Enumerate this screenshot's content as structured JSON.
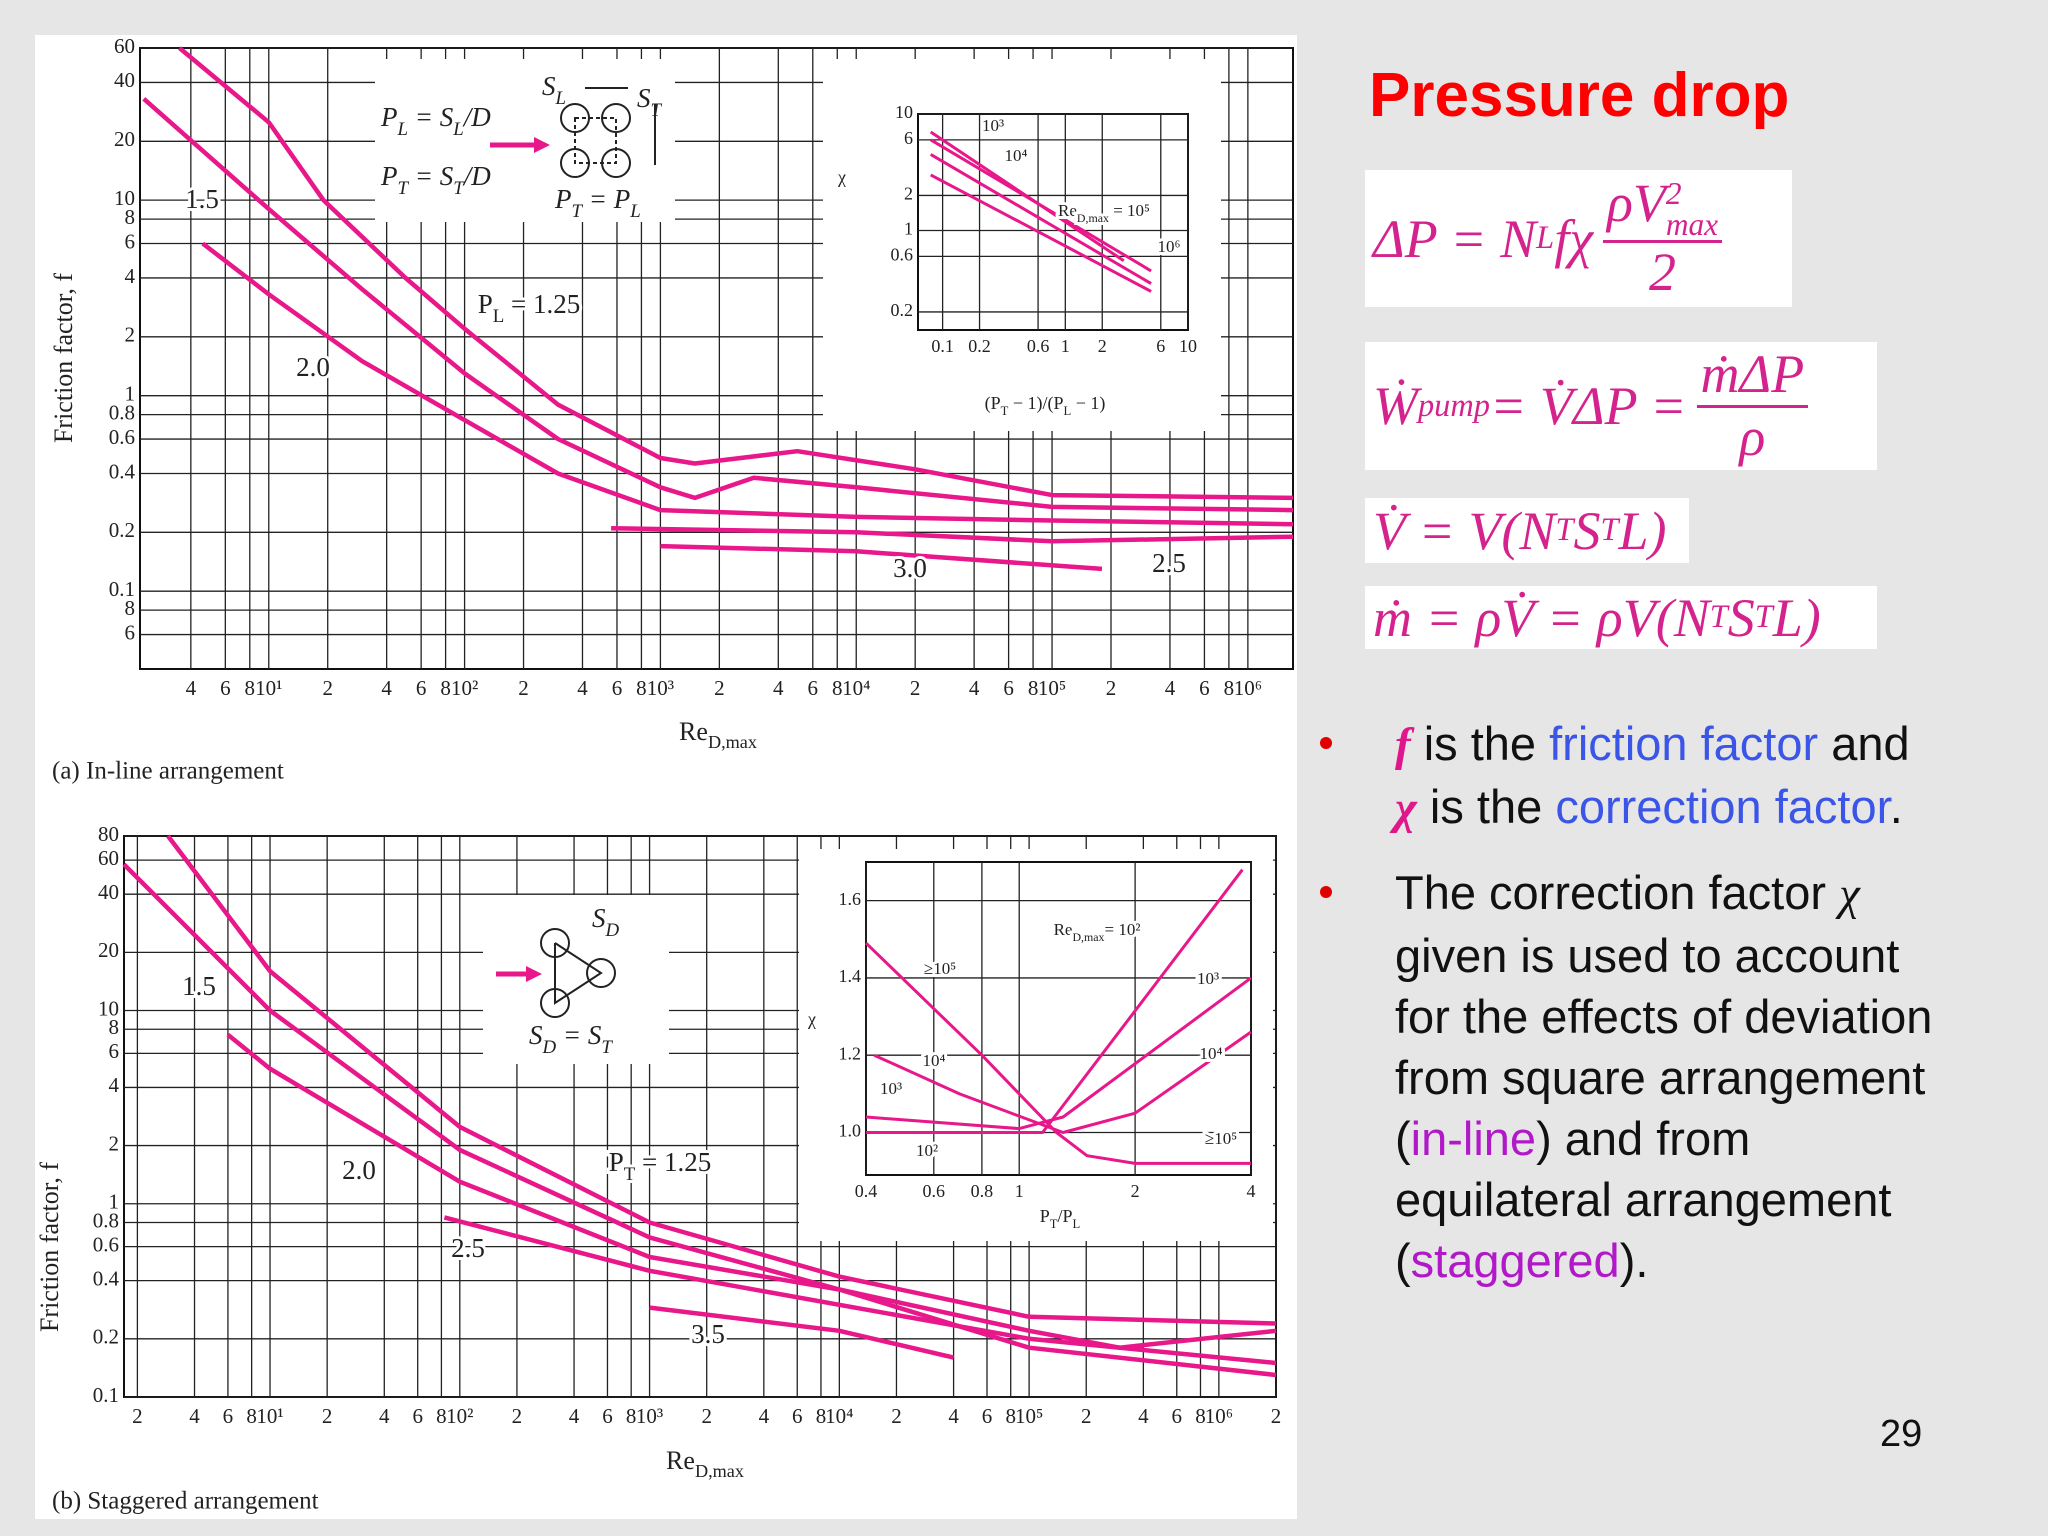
{
  "slide": {
    "title": "Pressure drop",
    "equations": [
      [
        "ΔP = N",
        "L",
        " fχ ",
        "ρV",
        "2",
        "max",
        "2"
      ],
      [
        "Ẇ",
        "pump",
        " = V̇ΔP = ",
        "ṁΔP",
        "ρ"
      ],
      [
        "V̇ = V(N",
        "T",
        "S",
        "T",
        "L)"
      ],
      [
        "ṁ = ρV̇ = ρV(N",
        "T",
        "S",
        "T",
        "L)"
      ]
    ],
    "bullets": [
      {
        "lines": [
          [
            "f",
            " is the ",
            "friction factor",
            " and"
          ],
          [
            "χ",
            " is the ",
            "correction factor",
            "."
          ]
        ]
      },
      {
        "lines": [
          [
            "The correction factor ",
            "χ"
          ],
          [
            "given is used to account"
          ],
          [
            "for the effects of deviation"
          ],
          [
            "from square arrangement"
          ],
          [
            "(",
            "in-line",
            ") and from"
          ],
          [
            "equilateral arrangement"
          ],
          [
            "(",
            "staggered",
            ")."
          ]
        ]
      }
    ],
    "page_number": "29"
  },
  "diagrams": [
    {
      "labels": [
        [
          "P",
          "L",
          " = S",
          "L",
          "/D"
        ],
        [
          "P",
          "T",
          " = S",
          "T",
          "/D"
        ],
        [
          "S",
          "L"
        ],
        [
          "S",
          "T"
        ],
        [
          "P",
          "T",
          " = P",
          "L"
        ]
      ]
    },
    {
      "labels": [
        [
          "S",
          "D"
        ],
        [
          "S",
          "D",
          " = S",
          "T"
        ]
      ]
    }
  ],
  "chart_data": [
    {
      "type": "line",
      "caption": "(a) In-line arrangement",
      "x_label": [
        "Re",
        "D,max"
      ],
      "y_label": "Friction factor, f",
      "log_x": true,
      "log_y": true,
      "grid": true,
      "xlim": [
        2.2,
        1700000
      ],
      "ylim": [
        0.04,
        60
      ],
      "xticks": [
        4,
        6,
        8,
        {
          "value": 10,
          "label": "10¹"
        },
        {
          "value": 20,
          "label": "2"
        },
        {
          "value": 40,
          "label": "4"
        },
        {
          "value": 60,
          "label": "6"
        },
        {
          "value": 80,
          "label": "8"
        },
        {
          "value": 100,
          "label": "10²"
        },
        {
          "value": 200,
          "label": "2"
        },
        {
          "value": 400,
          "label": "4"
        },
        {
          "value": 600,
          "label": "6"
        },
        {
          "value": 800,
          "label": "8"
        },
        {
          "value": 1000,
          "label": "10³"
        },
        {
          "value": 2000,
          "label": "2"
        },
        {
          "value": 4000,
          "label": "4"
        },
        {
          "value": 6000,
          "label": "6"
        },
        {
          "value": 8000,
          "label": "8"
        },
        {
          "value": 10000,
          "label": "10⁴"
        },
        {
          "value": 20000,
          "label": "2"
        },
        {
          "value": 40000,
          "label": "4"
        },
        {
          "value": 60000,
          "label": "6"
        },
        {
          "value": 80000,
          "label": "8"
        },
        {
          "value": 100000,
          "label": "10⁵"
        },
        {
          "value": 200000,
          "label": "2"
        },
        {
          "value": 400000,
          "label": "4"
        },
        {
          "value": 600000,
          "label": "6"
        },
        {
          "value": 800000,
          "label": "8"
        },
        {
          "value": 1000000,
          "label": "10⁶"
        }
      ],
      "yticks": [
        60,
        40,
        20,
        10,
        8,
        6,
        4,
        2,
        1,
        0.8,
        0.6,
        0.4,
        0.2,
        0.1,
        {
          "value": 0.08,
          "label": "8"
        },
        {
          "value": 0.06,
          "label": "6"
        }
      ],
      "color": "#e8178a",
      "series": [
        {
          "labels": [
            [
              "1.5"
            ]
          ],
          "x": [
            3.5,
            10,
            19,
            50,
            100,
            300,
            1000,
            1500,
            5000,
            20000,
            100000,
            1700000
          ],
          "values": [
            60,
            25,
            10,
            4,
            2.2,
            0.9,
            0.48,
            0.45,
            0.52,
            0.42,
            0.31,
            0.3
          ]
        },
        {
          "labels": [
            [
              "P",
              "L",
              " = 1.25"
            ]
          ],
          "x": [
            2.3,
            10,
            30,
            100,
            300,
            1000,
            1500,
            3000,
            10000,
            100000,
            1700000
          ],
          "values": [
            33,
            9,
            3.5,
            1.3,
            0.6,
            0.34,
            0.3,
            0.38,
            0.34,
            0.27,
            0.26
          ]
        },
        {
          "labels": [
            [
              "2.0"
            ]
          ],
          "x": [
            4.6,
            10,
            30,
            100,
            300,
            1000,
            10000,
            100000,
            1700000
          ],
          "values": [
            6,
            3.3,
            1.5,
            0.75,
            0.4,
            0.26,
            0.24,
            0.23,
            0.22
          ]
        },
        {
          "labels": [
            [
              "2.5"
            ]
          ],
          "x": [
            560,
            10000,
            100000,
            1700000
          ],
          "values": [
            0.21,
            0.2,
            0.18,
            0.19
          ]
        },
        {
          "labels": [
            [
              "3.0"
            ]
          ],
          "x": [
            1000,
            10000,
            180000
          ],
          "values": [
            0.17,
            0.16,
            0.13
          ]
        }
      ]
    },
    {
      "type": "line",
      "caption": "(b) Staggered arrangement",
      "x_label": [
        "Re",
        "D,max"
      ],
      "y_label": "Friction factor, f",
      "log_x": true,
      "log_y": true,
      "grid": true,
      "xlim": [
        1.7,
        2000000
      ],
      "ylim": [
        0.1,
        80
      ],
      "xticks": [
        {
          "value": 2,
          "label": "2"
        },
        4,
        6,
        8,
        {
          "value": 10,
          "label": "10¹"
        },
        {
          "value": 20,
          "label": "2"
        },
        {
          "value": 40,
          "label": "4"
        },
        {
          "value": 60,
          "label": "6"
        },
        {
          "value": 80,
          "label": "8"
        },
        {
          "value": 100,
          "label": "10²"
        },
        {
          "value": 200,
          "label": "2"
        },
        {
          "value": 400,
          "label": "4"
        },
        {
          "value": 600,
          "label": "6"
        },
        {
          "value": 800,
          "label": "8"
        },
        {
          "value": 1000,
          "label": "10³"
        },
        {
          "value": 2000,
          "label": "2"
        },
        {
          "value": 4000,
          "label": "4"
        },
        {
          "value": 6000,
          "label": "6"
        },
        {
          "value": 8000,
          "label": "8"
        },
        {
          "value": 10000,
          "label": "10⁴"
        },
        {
          "value": 20000,
          "label": "2"
        },
        {
          "value": 40000,
          "label": "4"
        },
        {
          "value": 60000,
          "label": "6"
        },
        {
          "value": 80000,
          "label": "8"
        },
        {
          "value": 100000,
          "label": "10⁵"
        },
        {
          "value": 200000,
          "label": "2"
        },
        {
          "value": 400000,
          "label": "4"
        },
        {
          "value": 600000,
          "label": "6"
        },
        {
          "value": 800000,
          "label": "8"
        },
        {
          "value": 1000000,
          "label": "10⁶"
        },
        {
          "value": 2000000,
          "label": "2"
        }
      ],
      "yticks": [
        80,
        60,
        40,
        20,
        10,
        8,
        6,
        4,
        2,
        1,
        0.8,
        0.6,
        0.4,
        0.2,
        0.1
      ],
      "color": "#e8178a",
      "series": [
        {
          "labels": [
            [
              "1.5"
            ]
          ],
          "x": [
            2.9,
            10,
            100,
            1000,
            10000,
            100000,
            2000000
          ],
          "values": [
            80,
            16,
            2.5,
            0.8,
            0.42,
            0.26,
            0.24
          ]
        },
        {
          "labels": [
            [
              "P",
              "T",
              " = 1.25"
            ]
          ],
          "x": [
            1.7,
            10,
            100,
            1000,
            10000,
            100000,
            300000,
            2000000
          ],
          "values": [
            57,
            10,
            1.9,
            0.67,
            0.36,
            0.22,
            0.18,
            0.22
          ]
        },
        {
          "labels": [
            [
              "2.0"
            ]
          ],
          "x": [
            6,
            10,
            100,
            1000,
            10000,
            100000,
            2000000
          ],
          "values": [
            7.5,
            5,
            1.3,
            0.53,
            0.36,
            0.18,
            0.13
          ]
        },
        {
          "labels": [
            [
              "2.5"
            ]
          ],
          "x": [
            83,
            1000,
            10000,
            100000,
            2000000
          ],
          "values": [
            0.85,
            0.45,
            0.3,
            0.2,
            0.15
          ]
        },
        {
          "labels": [
            [
              "3.5"
            ]
          ],
          "x": [
            1000,
            10000,
            40000
          ],
          "values": [
            0.29,
            0.22,
            0.16
          ]
        }
      ]
    },
    {
      "type": "line",
      "x_label": [
        "(P",
        "T",
        " − 1)/(P",
        "L",
        " − 1)"
      ],
      "y_label": "χ",
      "log_x": true,
      "log_y": true,
      "grid": true,
      "xlim": [
        0.063,
        10
      ],
      "ylim": [
        0.14,
        10
      ],
      "xticks": [
        0.1,
        0.2,
        0.6,
        1,
        2,
        6,
        10
      ],
      "yticks": [
        10,
        6,
        2,
        1,
        0.6,
        0.2
      ],
      "color": "#e8178a",
      "series": [
        {
          "labels": [
            [
              "10³"
            ]
          ],
          "x": [
            0.08,
            3
          ],
          "values": [
            7,
            0.55
          ]
        },
        {
          "labels": [
            [
              "10⁴"
            ]
          ],
          "x": [
            0.08,
            5
          ],
          "values": [
            6,
            0.45
          ]
        },
        {
          "labels": [
            [
              "Re",
              "D,max",
              " = 10⁵"
            ]
          ],
          "x": [
            0.08,
            5
          ],
          "values": [
            4.5,
            0.35
          ]
        },
        {
          "labels": [
            [
              "10⁶"
            ]
          ],
          "x": [
            0.08,
            5
          ],
          "values": [
            3,
            0.3
          ]
        }
      ]
    },
    {
      "type": "line",
      "x_label": [
        "P",
        "T",
        "/P",
        "L"
      ],
      "y_label": "χ",
      "log_x": true,
      "log_y": false,
      "grid": true,
      "xlim": [
        0.4,
        4
      ],
      "ylim": [
        0.89,
        1.7
      ],
      "xticks": [
        0.4,
        0.6,
        0.8,
        1,
        2,
        4
      ],
      "yticks": [
        {
          "value": 1,
          "label": "1.0"
        },
        1.2,
        1.4,
        1.6
      ],
      "color": "#e8178a",
      "series": [
        {
          "labels": [
            [
              "10²"
            ],
            [
              "Re",
              "D,max",
              "= 10²"
            ]
          ],
          "x": [
            0.4,
            1.15,
            3.8
          ],
          "values": [
            1.0,
            1.0,
            1.68
          ]
        },
        {
          "labels": [
            [
              "10³"
            ],
            [
              "10³"
            ]
          ],
          "x": [
            0.4,
            1.0,
            1.3,
            4
          ],
          "values": [
            1.04,
            1.01,
            1.04,
            1.4
          ]
        },
        {
          "labels": [
            [
              "10⁴"
            ],
            [
              "10⁴"
            ]
          ],
          "x": [
            0.42,
            0.7,
            1.3,
            2,
            4
          ],
          "values": [
            1.2,
            1.1,
            1.0,
            1.05,
            1.26
          ]
        },
        {
          "labels": [
            [
              "≥10⁵"
            ],
            [
              "≥10⁵"
            ]
          ],
          "x": [
            0.4,
            0.8,
            1.25,
            1.5,
            2,
            4
          ],
          "values": [
            1.49,
            1.2,
            1.0,
            0.94,
            0.92,
            0.92
          ]
        }
      ]
    }
  ]
}
